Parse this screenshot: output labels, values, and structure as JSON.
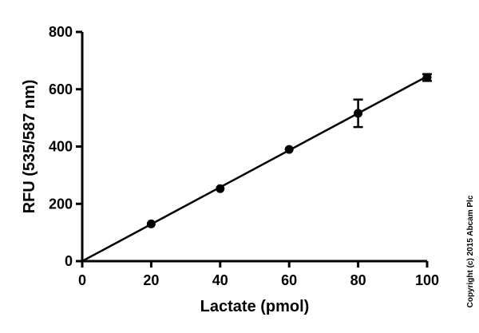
{
  "chart_data": {
    "type": "scatter",
    "xlabel": "Lactate (pmol)",
    "ylabel": "RFU (535/587 nm)",
    "xlim": [
      0,
      100
    ],
    "ylim": [
      0,
      800
    ],
    "xticks": [
      0,
      20,
      40,
      60,
      80,
      100
    ],
    "yticks": [
      0,
      200,
      400,
      600,
      800
    ],
    "points": [
      {
        "x": 20,
        "y": 130,
        "err": 0
      },
      {
        "x": 40,
        "y": 253,
        "err": 0
      },
      {
        "x": 60,
        "y": 390,
        "err": 0
      },
      {
        "x": 80,
        "y": 516,
        "err": 48
      },
      {
        "x": 100,
        "y": 641,
        "err": 12
      }
    ],
    "fit_line": {
      "x0": 0,
      "y0": 0,
      "x1": 100,
      "y1": 645
    },
    "grid": false,
    "colors": {
      "marker": "#000000",
      "line": "#000000",
      "axes": "#000000"
    }
  },
  "copyright": "Copyright (c) 2015 Abcam Plc"
}
